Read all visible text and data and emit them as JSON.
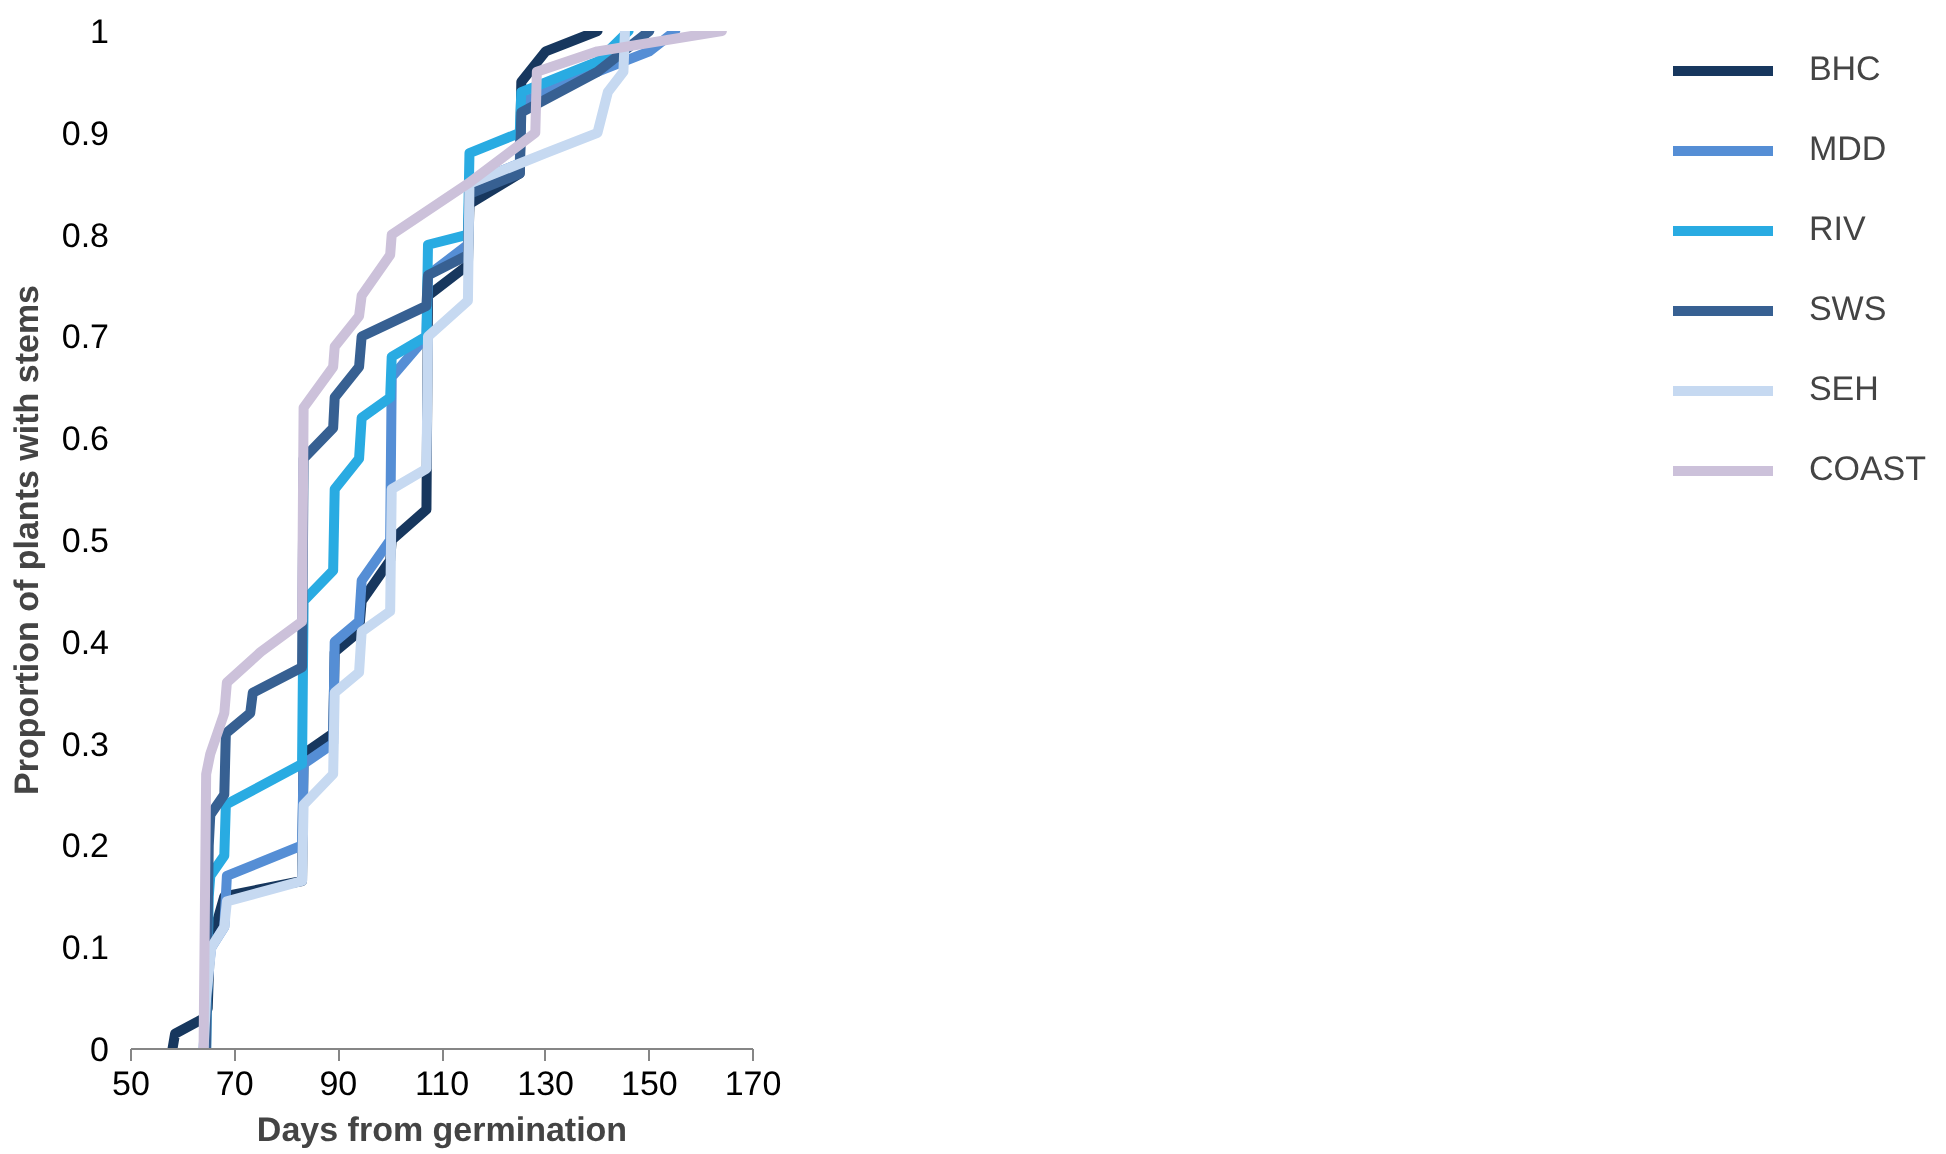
{
  "chart_data": {
    "type": "line",
    "xlabel": "Days from germination",
    "ylabel": "Proportion of plants with stems",
    "xlim": [
      50,
      170
    ],
    "ylim": [
      0,
      1
    ],
    "xticks": [
      50,
      70,
      90,
      110,
      130,
      150,
      170
    ],
    "yticks": [
      0,
      0.1,
      0.2,
      0.3,
      0.4,
      0.5,
      0.6,
      0.7,
      0.8,
      0.9,
      1
    ],
    "grid": false,
    "legend": "right",
    "marker": "none",
    "line_style": "solid",
    "series": [
      {
        "name": "BHC",
        "color": "#17375e",
        "x": [
          58,
          58.5,
          64,
          64.8,
          65.2,
          68,
          83,
          83.3,
          89,
          89.3,
          94,
          94.5,
          100,
          100.3,
          107,
          107.3,
          115,
          115.3,
          125,
          125.3,
          130,
          140
        ],
        "values": [
          0,
          0.015,
          0.03,
          0.04,
          0.1,
          0.15,
          0.165,
          0.29,
          0.31,
          0.39,
          0.41,
          0.44,
          0.48,
          0.5,
          0.53,
          0.74,
          0.77,
          0.83,
          0.86,
          0.95,
          0.98,
          1
        ]
      },
      {
        "name": "MDD",
        "color": "#558ed5",
        "x": [
          64,
          65,
          65.5,
          68,
          68.5,
          83,
          83.3,
          89,
          89.3,
          94,
          94.5,
          100,
          100.3,
          107,
          107.3,
          115,
          115.3,
          125,
          125.3,
          135,
          150,
          155
        ],
        "values": [
          0,
          0.08,
          0.1,
          0.12,
          0.17,
          0.2,
          0.28,
          0.3,
          0.4,
          0.42,
          0.46,
          0.5,
          0.66,
          0.7,
          0.76,
          0.79,
          0.85,
          0.87,
          0.93,
          0.95,
          0.98,
          1
        ]
      },
      {
        "name": "RIV",
        "color": "#29abe2",
        "x": [
          64.5,
          65,
          65.3,
          68,
          68.3,
          83,
          83.3,
          89,
          89.3,
          94,
          94.5,
          100,
          100.3,
          107,
          107.3,
          115,
          115.3,
          125,
          125.3,
          140,
          146
        ],
        "values": [
          0,
          0.15,
          0.17,
          0.19,
          0.24,
          0.28,
          0.44,
          0.47,
          0.55,
          0.58,
          0.62,
          0.64,
          0.68,
          0.7,
          0.79,
          0.8,
          0.88,
          0.9,
          0.94,
          0.97,
          1
        ]
      },
      {
        "name": "SWS",
        "color": "#376092",
        "x": [
          64.5,
          65,
          65.3,
          68,
          68.3,
          73,
          73.5,
          83,
          83.3,
          89,
          89.3,
          94,
          94.5,
          107,
          107.3,
          115,
          115.3,
          125,
          125.3,
          140,
          150
        ],
        "values": [
          0,
          0.2,
          0.23,
          0.25,
          0.31,
          0.33,
          0.35,
          0.375,
          0.58,
          0.61,
          0.64,
          0.67,
          0.7,
          0.73,
          0.76,
          0.78,
          0.84,
          0.86,
          0.92,
          0.96,
          1
        ]
      },
      {
        "name": "SEH",
        "color": "#c6d9f1",
        "x": [
          64,
          64.5,
          65.5,
          68,
          68.5,
          83,
          83.3,
          89,
          89.3,
          94,
          94.5,
          100,
          100.3,
          107,
          107.3,
          115,
          115.3,
          130,
          140,
          142,
          145,
          145.3
        ],
        "values": [
          0,
          0.05,
          0.1,
          0.12,
          0.145,
          0.165,
          0.24,
          0.27,
          0.35,
          0.37,
          0.41,
          0.43,
          0.55,
          0.57,
          0.7,
          0.735,
          0.85,
          0.88,
          0.9,
          0.94,
          0.96,
          1
        ]
      },
      {
        "name": "COAST",
        "color": "#ccc1da",
        "x": [
          64,
          64.5,
          65.3,
          68,
          68.5,
          75,
          83,
          83.3,
          89,
          89.3,
          94,
          94.5,
          100,
          100.3,
          115,
          128,
          128.3,
          140,
          164
        ],
        "values": [
          0,
          0.27,
          0.29,
          0.33,
          0.36,
          0.39,
          0.42,
          0.63,
          0.67,
          0.69,
          0.72,
          0.74,
          0.78,
          0.8,
          0.85,
          0.9,
          0.96,
          0.98,
          1
        ]
      }
    ]
  }
}
